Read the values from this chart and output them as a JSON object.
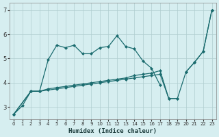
{
  "xlabel": "Humidex (Indice chaleur)",
  "background_color": "#d6eef0",
  "grid_color": "#b0cdd0",
  "line_color": "#1a6b6e",
  "xlim": [
    -0.5,
    23.5
  ],
  "ylim": [
    2.5,
    7.3
  ],
  "yticks": [
    3,
    4,
    5,
    6,
    7
  ],
  "xticks": [
    0,
    1,
    2,
    3,
    4,
    5,
    6,
    7,
    8,
    9,
    10,
    11,
    12,
    13,
    14,
    15,
    16,
    17,
    18,
    19,
    20,
    21,
    22,
    23
  ],
  "s1x": [
    0,
    1,
    2,
    3,
    4,
    5,
    6,
    7,
    8,
    9,
    10,
    11,
    12,
    13,
    14,
    15,
    16,
    17
  ],
  "s1y": [
    2.7,
    3.05,
    3.65,
    3.65,
    4.95,
    5.55,
    5.45,
    5.55,
    5.2,
    5.2,
    5.45,
    5.5,
    5.95,
    5.5,
    5.4,
    4.9,
    4.6,
    3.9
  ],
  "s2x": [
    0,
    2,
    3,
    4,
    5,
    6,
    7,
    8,
    9,
    10,
    11,
    12,
    13,
    14,
    15,
    16,
    17,
    18,
    19
  ],
  "s2y": [
    2.7,
    3.65,
    3.65,
    3.75,
    3.8,
    3.85,
    3.9,
    3.95,
    4.0,
    4.05,
    4.1,
    4.15,
    4.2,
    4.3,
    4.35,
    4.4,
    4.5,
    3.35,
    3.35
  ],
  "s3x": [
    0,
    2,
    3,
    4,
    5,
    6,
    7,
    8,
    9,
    10,
    11,
    12,
    13,
    14,
    15,
    16,
    17,
    18,
    19,
    20,
    21,
    22,
    23
  ],
  "s3y": [
    2.7,
    3.65,
    3.65,
    3.7,
    3.75,
    3.8,
    3.85,
    3.9,
    3.95,
    4.0,
    4.05,
    4.1,
    4.15,
    4.2,
    4.25,
    4.3,
    4.35,
    3.35,
    3.35,
    4.45,
    4.85,
    5.3,
    7.0
  ],
  "s4x": [
    20,
    21,
    22,
    23
  ],
  "s4y": [
    4.45,
    4.85,
    5.3,
    7.0
  ]
}
